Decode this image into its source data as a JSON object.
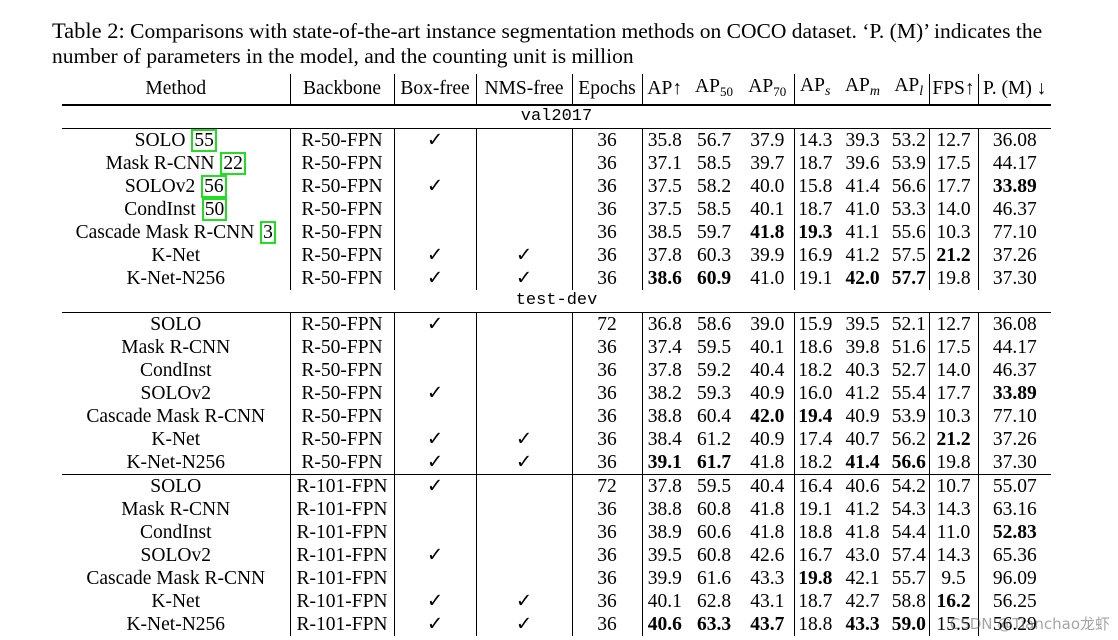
{
  "caption": {
    "label": "Table 2:",
    "text": " Comparisons with state-of-the-art instance segmentation methods on COCO dataset. ‘P. (M)’ indicates the number of parameters in the model, and the counting unit is million"
  },
  "headers": {
    "method": "Method",
    "backbone": "Backbone",
    "box_free": "Box-free",
    "nms_free": "NMS-free",
    "epochs": "Epochs",
    "ap": "AP↑",
    "ap50_base": "AP",
    "ap50_sub": "50",
    "ap70_base": "AP",
    "ap70_sub": "70",
    "aps_base": "AP",
    "aps_sub": "s",
    "apm_base": "AP",
    "apm_sub": "m",
    "apl_base": "AP",
    "apl_sub": "l",
    "fps": "FPS↑",
    "params": "P. (M) ↓"
  },
  "sections": {
    "val": "val2017",
    "test": "test-dev"
  },
  "check": "✓",
  "watermark": "CSDN @Tianchao龙虾",
  "rows": [
    {
      "method": "SOLO",
      "ref": "55",
      "backbone": "R-50-FPN",
      "box": true,
      "nms": false,
      "epochs": "36",
      "ap": "35.8",
      "ap50": "56.7",
      "ap70": "37.9",
      "aps": "14.3",
      "apm": "39.3",
      "apl": "53.2",
      "fps": "12.7",
      "params": "36.08"
    },
    {
      "method": "Mask R-CNN",
      "ref": "22",
      "backbone": "R-50-FPN",
      "box": false,
      "nms": false,
      "epochs": "36",
      "ap": "37.1",
      "ap50": "58.5",
      "ap70": "39.7",
      "aps": "18.7",
      "apm": "39.6",
      "apl": "53.9",
      "fps": "17.5",
      "params": "44.17"
    },
    {
      "method": "SOLOv2",
      "ref": "56",
      "backbone": "R-50-FPN",
      "box": true,
      "nms": false,
      "epochs": "36",
      "ap": "37.5",
      "ap50": "58.2",
      "ap70": "40.0",
      "aps": "15.8",
      "apm": "41.4",
      "apl": "56.6",
      "fps": "17.7",
      "params": "33.89",
      "bold": [
        "params"
      ]
    },
    {
      "method": "CondInst",
      "ref": "50",
      "backbone": "R-50-FPN",
      "box": false,
      "nms": false,
      "epochs": "36",
      "ap": "37.5",
      "ap50": "58.5",
      "ap70": "40.1",
      "aps": "18.7",
      "apm": "41.0",
      "apl": "53.3",
      "fps": "14.0",
      "params": "46.37"
    },
    {
      "method": "Cascade Mask R-CNN",
      "ref": "3",
      "backbone": "R-50-FPN",
      "box": false,
      "nms": false,
      "epochs": "36",
      "ap": "38.5",
      "ap50": "59.7",
      "ap70": "41.8",
      "aps": "19.3",
      "apm": "41.1",
      "apl": "55.6",
      "fps": "10.3",
      "params": "77.10",
      "bold": [
        "ap70",
        "aps"
      ]
    },
    {
      "method": "K-Net",
      "backbone": "R-50-FPN",
      "box": true,
      "nms": true,
      "epochs": "36",
      "ap": "37.8",
      "ap50": "60.3",
      "ap70": "39.9",
      "aps": "16.9",
      "apm": "41.2",
      "apl": "57.5",
      "fps": "21.2",
      "params": "37.26",
      "bold": [
        "fps"
      ]
    },
    {
      "method": "K-Net-N256",
      "backbone": "R-50-FPN",
      "box": true,
      "nms": true,
      "epochs": "36",
      "ap": "38.6",
      "ap50": "60.9",
      "ap70": "41.0",
      "aps": "19.1",
      "apm": "42.0",
      "apl": "57.7",
      "fps": "19.8",
      "params": "37.30",
      "bold": [
        "ap",
        "ap50",
        "apm",
        "apl"
      ]
    },
    {
      "method": "SOLO",
      "backbone": "R-50-FPN",
      "box": true,
      "nms": false,
      "epochs": "72",
      "ap": "36.8",
      "ap50": "58.6",
      "ap70": "39.0",
      "aps": "15.9",
      "apm": "39.5",
      "apl": "52.1",
      "fps": "12.7",
      "params": "36.08"
    },
    {
      "method": "Mask R-CNN",
      "backbone": "R-50-FPN",
      "box": false,
      "nms": false,
      "epochs": "36",
      "ap": "37.4",
      "ap50": "59.5",
      "ap70": "40.1",
      "aps": "18.6",
      "apm": "39.8",
      "apl": "51.6",
      "fps": "17.5",
      "params": "44.17"
    },
    {
      "method": "CondInst",
      "backbone": "R-50-FPN",
      "box": false,
      "nms": false,
      "epochs": "36",
      "ap": "37.8",
      "ap50": "59.2",
      "ap70": "40.4",
      "aps": "18.2",
      "apm": "40.3",
      "apl": "52.7",
      "fps": "14.0",
      "params": "46.37"
    },
    {
      "method": "SOLOv2",
      "backbone": "R-50-FPN",
      "box": true,
      "nms": false,
      "epochs": "36",
      "ap": "38.2",
      "ap50": "59.3",
      "ap70": "40.9",
      "aps": "16.0",
      "apm": "41.2",
      "apl": "55.4",
      "fps": "17.7",
      "params": "33.89",
      "bold": [
        "params"
      ]
    },
    {
      "method": "Cascade Mask R-CNN",
      "backbone": "R-50-FPN",
      "box": false,
      "nms": false,
      "epochs": "36",
      "ap": "38.8",
      "ap50": "60.4",
      "ap70": "42.0",
      "aps": "19.4",
      "apm": "40.9",
      "apl": "53.9",
      "fps": "10.3",
      "params": "77.10",
      "bold": [
        "ap70",
        "aps"
      ]
    },
    {
      "method": "K-Net",
      "backbone": "R-50-FPN",
      "box": true,
      "nms": true,
      "epochs": "36",
      "ap": "38.4",
      "ap50": "61.2",
      "ap70": "40.9",
      "aps": "17.4",
      "apm": "40.7",
      "apl": "56.2",
      "fps": "21.2",
      "params": "37.26",
      "bold": [
        "fps"
      ]
    },
    {
      "method": "K-Net-N256",
      "backbone": "R-50-FPN",
      "box": true,
      "nms": true,
      "epochs": "36",
      "ap": "39.1",
      "ap50": "61.7",
      "ap70": "41.8",
      "aps": "18.2",
      "apm": "41.4",
      "apl": "56.6",
      "fps": "19.8",
      "params": "37.30",
      "bold": [
        "ap",
        "ap50",
        "apm",
        "apl"
      ]
    },
    {
      "method": "SOLO",
      "backbone": "R-101-FPN",
      "box": true,
      "nms": false,
      "epochs": "72",
      "ap": "37.8",
      "ap50": "59.5",
      "ap70": "40.4",
      "aps": "16.4",
      "apm": "40.6",
      "apl": "54.2",
      "fps": "10.7",
      "params": "55.07",
      "blockTop": true
    },
    {
      "method": "Mask R-CNN",
      "backbone": "R-101-FPN",
      "box": false,
      "nms": false,
      "epochs": "36",
      "ap": "38.8",
      "ap50": "60.8",
      "ap70": "41.8",
      "aps": "19.1",
      "apm": "41.2",
      "apl": "54.3",
      "fps": "14.3",
      "params": "63.16"
    },
    {
      "method": "CondInst",
      "backbone": "R-101-FPN",
      "box": false,
      "nms": false,
      "epochs": "36",
      "ap": "38.9",
      "ap50": "60.6",
      "ap70": "41.8",
      "aps": "18.8",
      "apm": "41.8",
      "apl": "54.4",
      "fps": "11.0",
      "params": "52.83",
      "bold": [
        "params"
      ]
    },
    {
      "method": "SOLOv2",
      "backbone": "R-101-FPN",
      "box": true,
      "nms": false,
      "epochs": "36",
      "ap": "39.5",
      "ap50": "60.8",
      "ap70": "42.6",
      "aps": "16.7",
      "apm": "43.0",
      "apl": "57.4",
      "fps": "14.3",
      "params": "65.36"
    },
    {
      "method": "Cascade Mask R-CNN",
      "backbone": "R-101-FPN",
      "box": false,
      "nms": false,
      "epochs": "36",
      "ap": "39.9",
      "ap50": "61.6",
      "ap70": "43.3",
      "aps": "19.8",
      "apm": "42.1",
      "apl": "55.7",
      "fps": "9.5",
      "params": "96.09",
      "bold": [
        "aps"
      ]
    },
    {
      "method": "K-Net",
      "backbone": "R-101-FPN",
      "box": true,
      "nms": true,
      "epochs": "36",
      "ap": "40.1",
      "ap50": "62.8",
      "ap70": "43.1",
      "aps": "18.7",
      "apm": "42.7",
      "apl": "58.8",
      "fps": "16.2",
      "params": "56.25",
      "bold": [
        "fps"
      ]
    },
    {
      "method": "K-Net-N256",
      "backbone": "R-101-FPN",
      "box": true,
      "nms": true,
      "epochs": "36",
      "ap": "40.6",
      "ap50": "63.3",
      "ap70": "43.7",
      "aps": "18.8",
      "apm": "43.3",
      "apl": "59.0",
      "fps": "15.5",
      "params": "56.29",
      "bold": [
        "ap",
        "ap50",
        "ap70",
        "apm",
        "apl"
      ]
    }
  ]
}
